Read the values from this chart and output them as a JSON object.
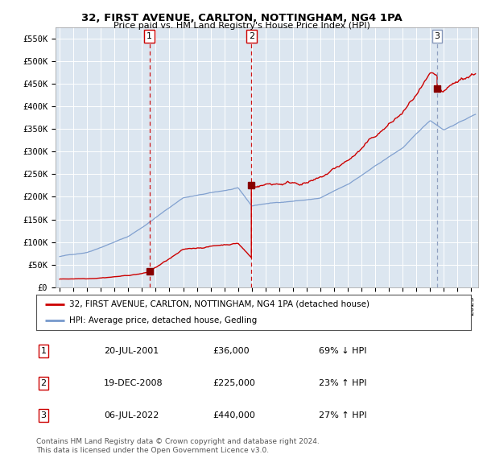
{
  "title": "32, FIRST AVENUE, CARLTON, NOTTINGHAM, NG4 1PA",
  "subtitle": "Price paid vs. HM Land Registry's House Price Index (HPI)",
  "ylabel_ticks": [
    "£0",
    "£50K",
    "£100K",
    "£150K",
    "£200K",
    "£250K",
    "£300K",
    "£350K",
    "£400K",
    "£450K",
    "£500K",
    "£550K"
  ],
  "ytick_values": [
    0,
    50000,
    100000,
    150000,
    200000,
    250000,
    300000,
    350000,
    400000,
    450000,
    500000,
    550000
  ],
  "ylim": [
    0,
    575000
  ],
  "xlim_left": 1994.7,
  "xlim_right": 2025.5,
  "sale_dates_num": [
    2001.55,
    2008.97,
    2022.51
  ],
  "sale_prices": [
    36000,
    225000,
    440000
  ],
  "sale_labels": [
    "1",
    "2",
    "3"
  ],
  "vline_colors": [
    "#cc0000",
    "#cc0000",
    "#8899bb"
  ],
  "vline_styles": [
    "--",
    "--",
    "--"
  ],
  "sale_dot_color": "#880000",
  "hpi_line_color": "#7799cc",
  "price_line_color": "#cc0000",
  "legend_label_price": "32, FIRST AVENUE, CARLTON, NOTTINGHAM, NG4 1PA (detached house)",
  "legend_label_hpi": "HPI: Average price, detached house, Gedling",
  "table_rows": [
    [
      "1",
      "20-JUL-2001",
      "£36,000",
      "69% ↓ HPI"
    ],
    [
      "2",
      "19-DEC-2008",
      "£225,000",
      "23% ↑ HPI"
    ],
    [
      "3",
      "06-JUL-2022",
      "£440,000",
      "27% ↑ HPI"
    ]
  ],
  "footnote": "Contains HM Land Registry data © Crown copyright and database right 2024.\nThis data is licensed under the Open Government Licence v3.0.",
  "background_color": "#ffffff",
  "plot_bg_color": "#dce6f0",
  "grid_color": "#ffffff",
  "label_box_color": "#cc0000",
  "label_box_color_3": "#8899bb"
}
